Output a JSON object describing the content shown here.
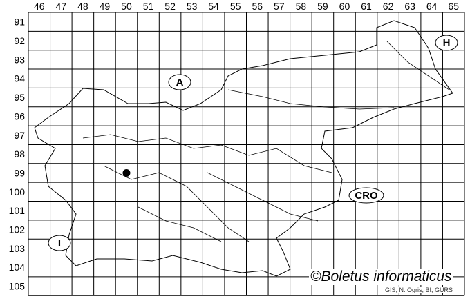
{
  "map": {
    "columns": [
      46,
      47,
      48,
      49,
      50,
      51,
      52,
      53,
      54,
      55,
      56,
      57,
      58,
      59,
      60,
      61,
      62,
      63,
      64,
      65
    ],
    "rows": [
      91,
      92,
      93,
      94,
      95,
      96,
      97,
      98,
      99,
      100,
      101,
      102,
      103,
      104,
      105
    ],
    "neighbor_labels": {
      "austria": "A",
      "hungary": "H",
      "croatia": "CRO",
      "italy": "I"
    },
    "records": [
      {
        "column": 50,
        "row": 99
      }
    ],
    "copyright": "©Boletus informaticus",
    "source": "GIS, N. Ogris, BI, GURS"
  }
}
